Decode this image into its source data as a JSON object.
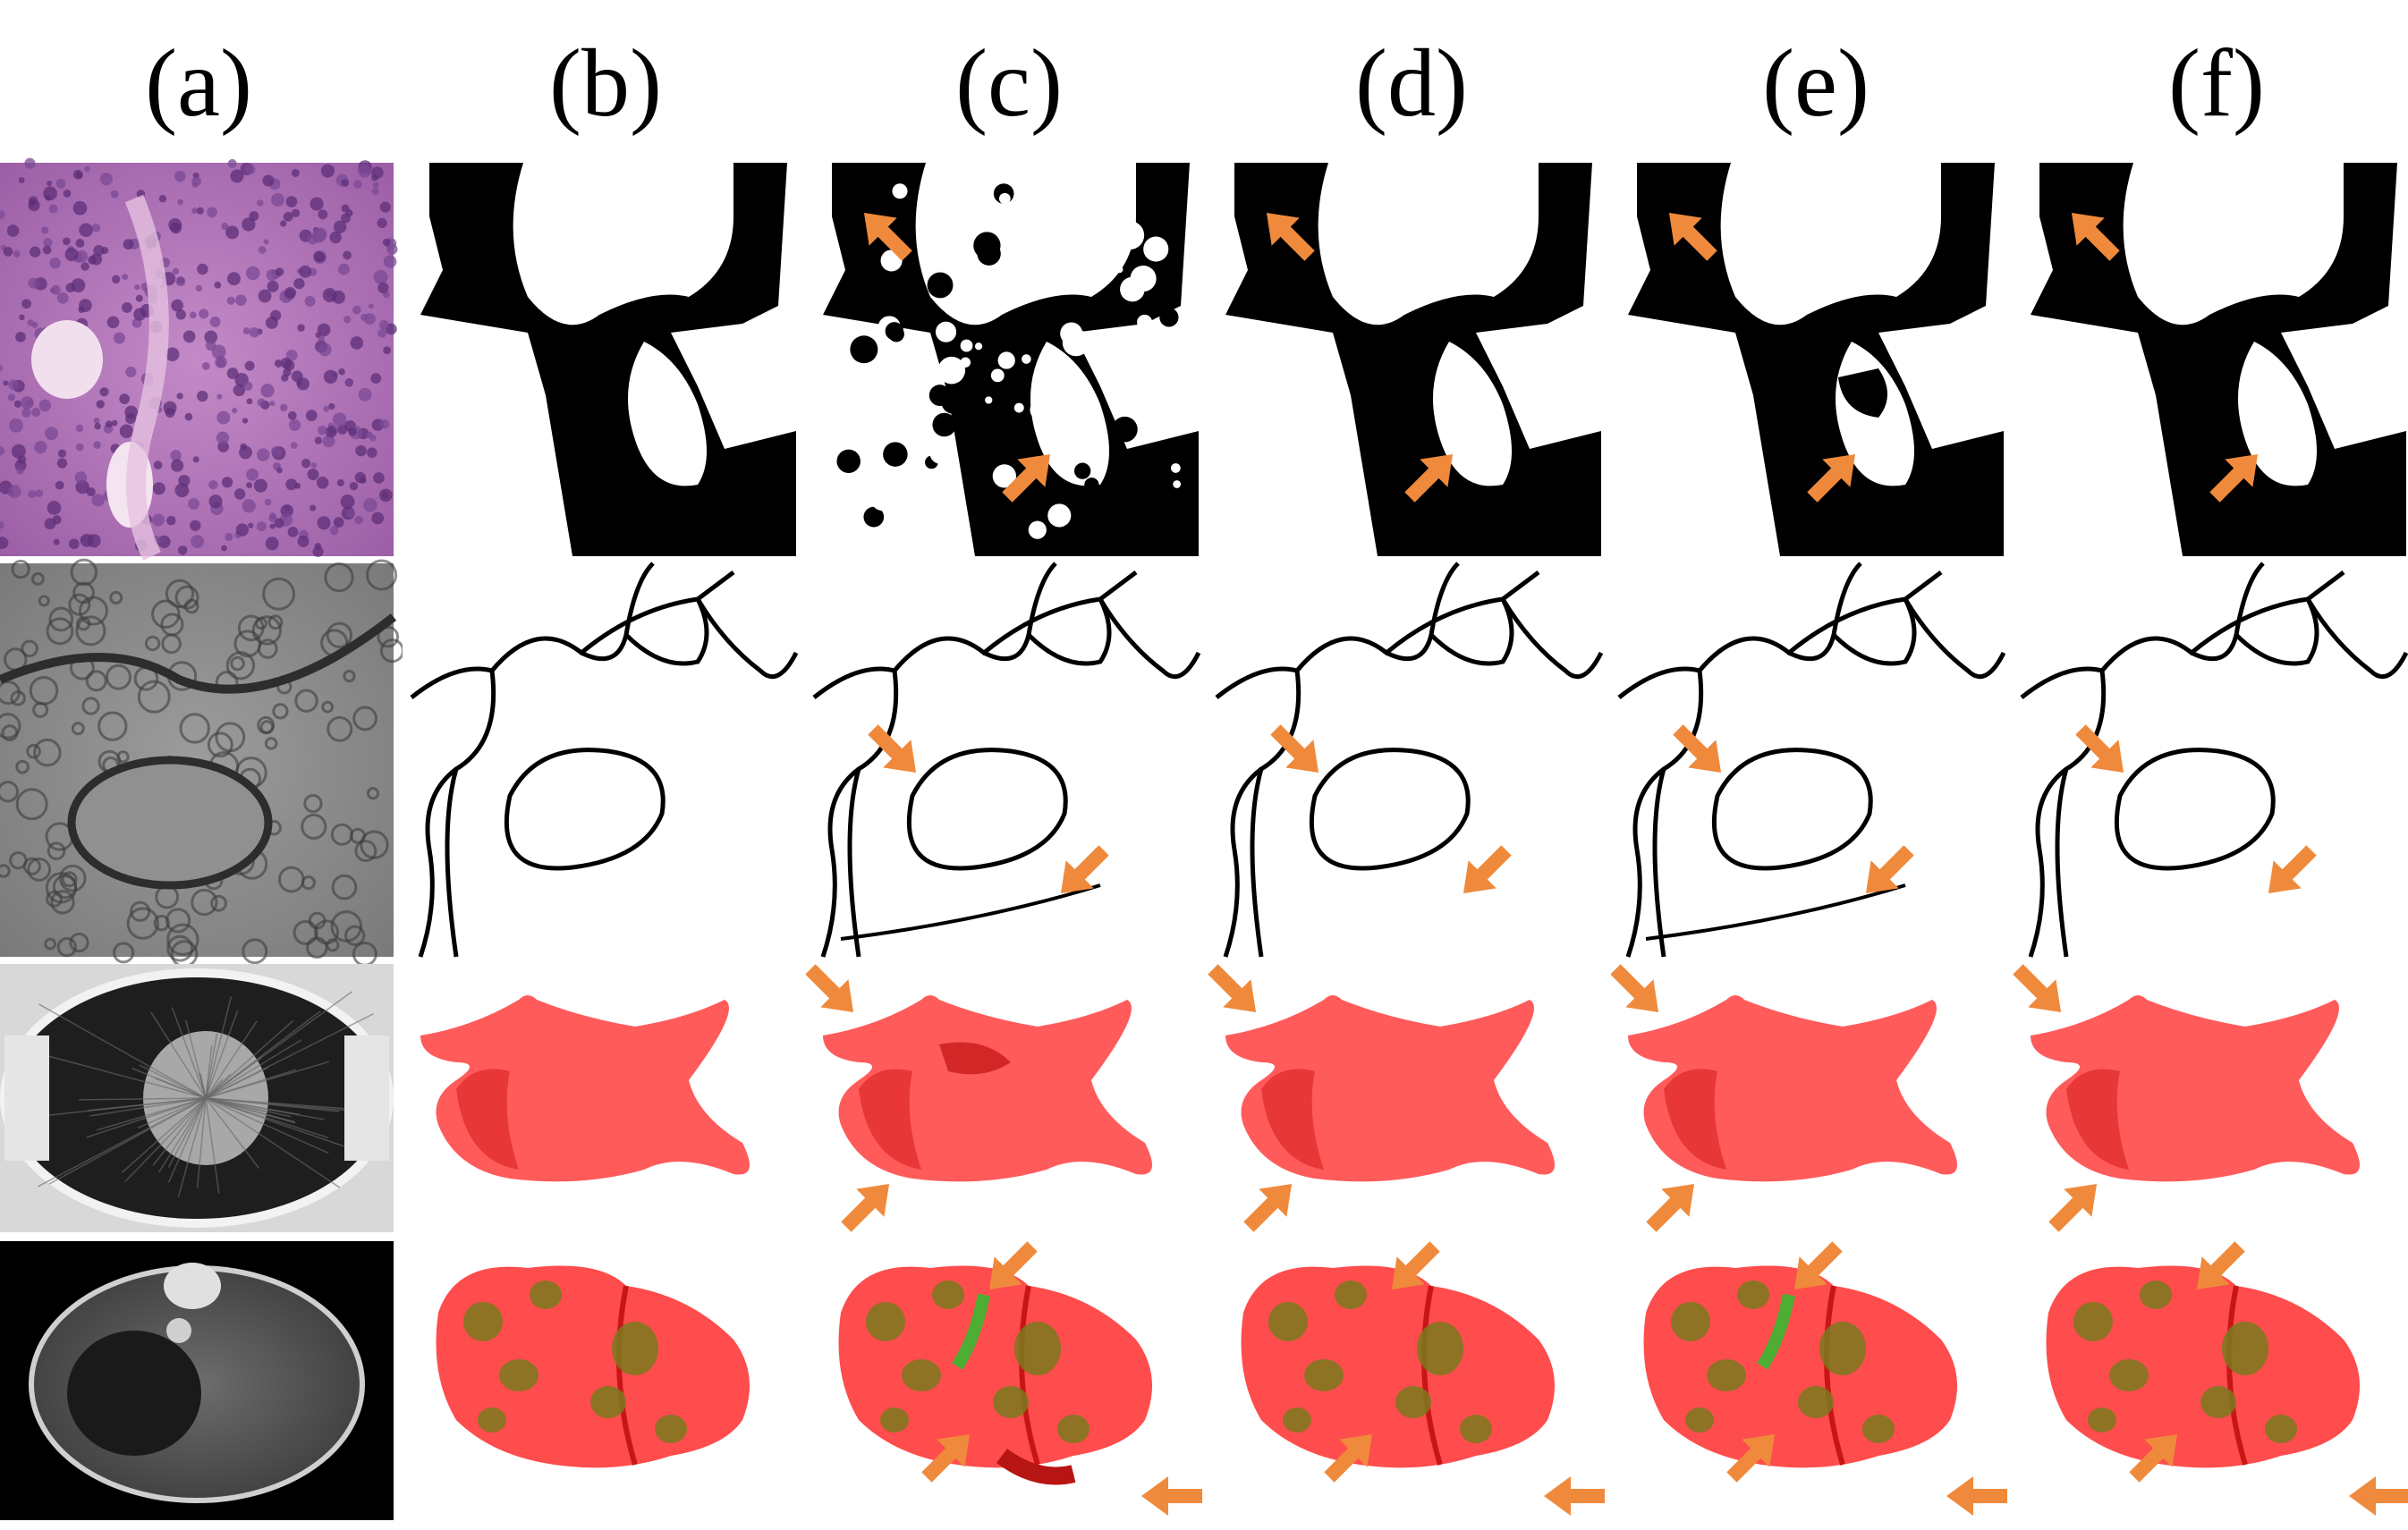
{
  "columns": [
    {
      "id": "a",
      "label": "(a)"
    },
    {
      "id": "b",
      "label": "(b)"
    },
    {
      "id": "c",
      "label": "(c)"
    },
    {
      "id": "d",
      "label": "(d)"
    },
    {
      "id": "e",
      "label": "(e)"
    },
    {
      "id": "f",
      "label": "(f)"
    }
  ],
  "rows": [
    {
      "id": "histology",
      "input": "H&E stained gland tissue",
      "result": "binary gland mask"
    },
    {
      "id": "em",
      "input": "electron microscopy membranes",
      "result": "membrane boundary map"
    },
    {
      "id": "heart",
      "input": "thoracic MR slice",
      "result": "3D heart surface"
    },
    {
      "id": "liver",
      "input": "abdominal CT slice",
      "result": "3D liver and tumor surface"
    }
  ],
  "colors": {
    "arrow": "#ef8a3c",
    "organ": "#ff2d2d",
    "tumor": "#7a7a1e",
    "histo": "#b47ab8",
    "em_gray": "#8a8a8a"
  }
}
